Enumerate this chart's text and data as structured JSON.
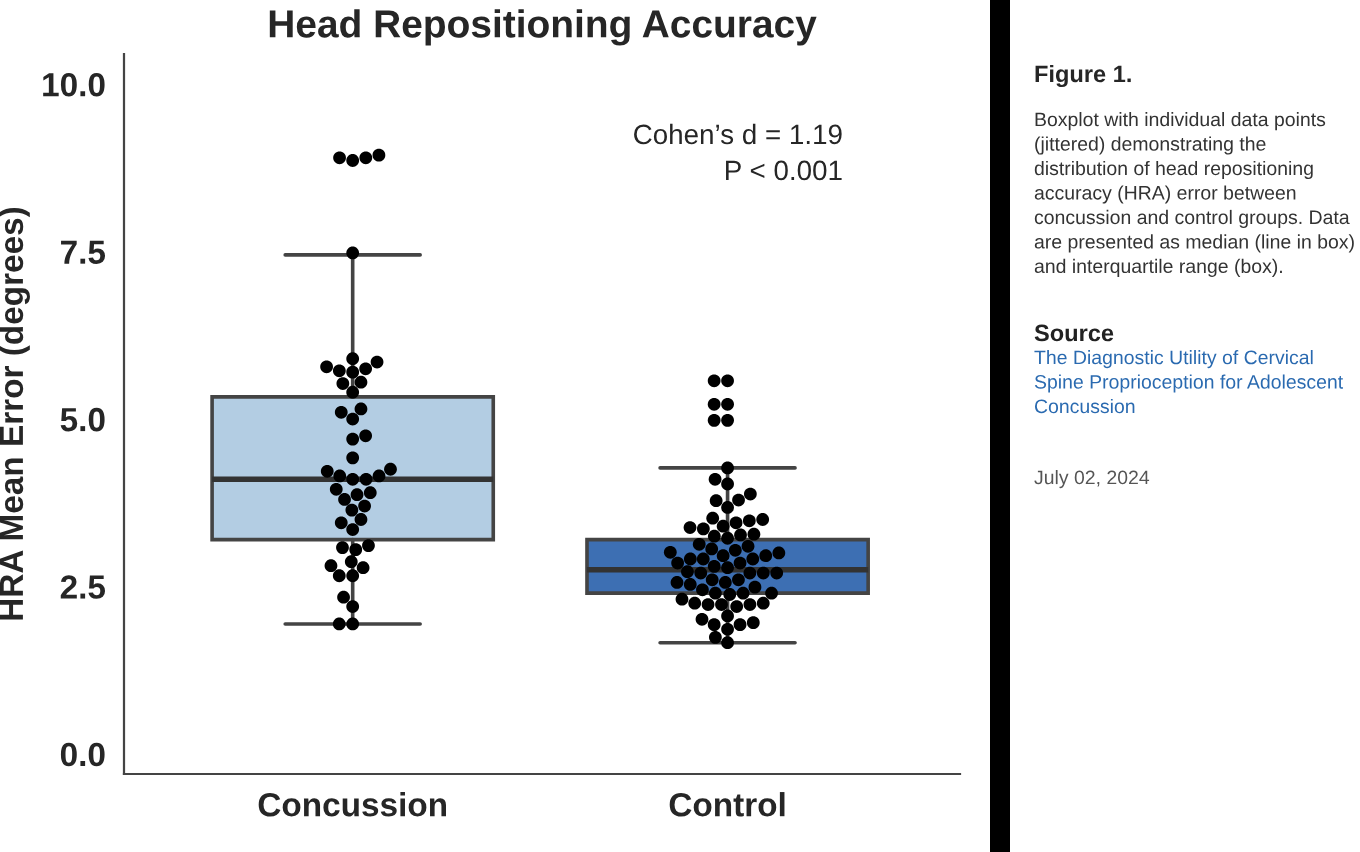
{
  "chart_data": [
    {
      "type": "box",
      "title": "Head Repositioning Accuracy",
      "ylabel": "HRA Mean Error (degrees)",
      "categories": [
        "Concussion",
        "Control"
      ],
      "boxes": [
        {
          "low": 1.94,
          "q1": 3.2,
          "median": 4.1,
          "q3": 5.33,
          "high": 7.45,
          "outliers": [
            8.9
          ]
        },
        {
          "low": 1.66,
          "q1": 2.4,
          "median": 2.75,
          "q3": 3.2,
          "high": 4.27,
          "outliers": [
            5.57,
            5.22,
            4.98
          ]
        }
      ],
      "colors": [
        "#b3cde3",
        "#3d6fb3"
      ],
      "series": [
        {
          "type": "scatter",
          "color": "#000000",
          "x": [
            "Concussion",
            "Concussion",
            "Concussion",
            "Concussion",
            "Concussion",
            "Concussion",
            "Concussion",
            "Concussion",
            "Concussion",
            "Concussion",
            "Concussion",
            "Concussion",
            "Concussion",
            "Concussion",
            "Concussion",
            "Concussion",
            "Concussion",
            "Concussion",
            "Concussion",
            "Concussion",
            "Concussion",
            "Concussion",
            "Concussion",
            "Concussion",
            "Concussion",
            "Concussion",
            "Concussion",
            "Concussion",
            "Concussion",
            "Concussion",
            "Concussion",
            "Concussion",
            "Concussion",
            "Concussion",
            "Concussion",
            "Concussion",
            "Concussion",
            "Concussion",
            "Concussion",
            "Concussion",
            "Concussion",
            "Concussion",
            "Concussion",
            "Concussion",
            "Concussion",
            "Concussion",
            "Control",
            "Control",
            "Control",
            "Control",
            "Control",
            "Control",
            "Control",
            "Control",
            "Control",
            "Control",
            "Control",
            "Control",
            "Control",
            "Control",
            "Control",
            "Control",
            "Control",
            "Control",
            "Control",
            "Control",
            "Control",
            "Control",
            "Control",
            "Control",
            "Control",
            "Control",
            "Control",
            "Control",
            "Control",
            "Control",
            "Control",
            "Control",
            "Control",
            "Control",
            "Control",
            "Control",
            "Control",
            "Control",
            "Control",
            "Control",
            "Control",
            "Control",
            "Control",
            "Control",
            "Control",
            "Control",
            "Control",
            "Control",
            "Control",
            "Control",
            "Control",
            "Control",
            "Control",
            "Control",
            "Control",
            "Control",
            "Control",
            "Control",
            "Control",
            "Control",
            "Control",
            "Control",
            "Control",
            "Control",
            "Control",
            "Control",
            "Control"
          ],
          "values": [
            8.94,
            8.9,
            8.86,
            7.48,
            5.9,
            5.85,
            5.78,
            5.75,
            5.72,
            5.7,
            5.55,
            5.53,
            5.4,
            5.15,
            5.1,
            5.0,
            4.75,
            4.7,
            4.42,
            4.25,
            4.22,
            4.15,
            4.15,
            4.1,
            4.1,
            3.95,
            3.9,
            3.87,
            3.8,
            3.7,
            3.64,
            3.5,
            3.45,
            3.35,
            3.05,
            3.08,
            3.11,
            2.87,
            2.81,
            2.78,
            2.66,
            2.66,
            2.34,
            2.2,
            1.94,
            1.94,
            5.57,
            5.22,
            4.98,
            4.27,
            4.03,
            4.1,
            3.79,
            3.78,
            3.88,
            3.68,
            3.48,
            3.5,
            3.45,
            3.52,
            3.38,
            3.36,
            3.4,
            3.28,
            3.22,
            3.27,
            3.25,
            2.96,
            2.96,
            3.06,
            3.13,
            3.04,
            3.01,
            2.91,
            2.78,
            2.8,
            2.7,
            2.91,
            2.7,
            2.72,
            2.7,
            2.7,
            2.56,
            2.56,
            2.53,
            2.49,
            2.4,
            2.6,
            2.4,
            2.6,
            2.45,
            2.38,
            2.4,
            2.25,
            2.23,
            2.25,
            2.31,
            2.2,
            2.23,
            2.23,
            2.01,
            2.06,
            1.96,
            1.86,
            1.93,
            1.93,
            1.74,
            1.66,
            3.1,
            3.0,
            2.85,
            2.91,
            2.85
          ]
        }
      ],
      "ylim": [
        -0.3,
        10.45
      ],
      "yticks": [
        {
          "value": 0,
          "label": "0.0"
        },
        {
          "value": 2.5,
          "label": "2.5"
        },
        {
          "value": 5,
          "label": "5.0"
        },
        {
          "value": 7.5,
          "label": "7.5"
        },
        {
          "value": 10,
          "label": "10.0"
        }
      ],
      "grid": false,
      "annotations": [
        "Cohen’s d = 1.19",
        "P < 0.001"
      ]
    },
    {
      "type": "other",
      "title": "Figure 1.",
      "annotations": [
        "Boxplot with individual data points (jittered) demonstrating the distribution of head repositioning accuracy (HRA) error between concussion and control groups. Data are presented as median (line in box) and interquartile range (box).",
        "Source",
        "The Diagnostic Utility of Cervical Spine Proprioception for Adolescent Concussion",
        "July 02, 2024"
      ]
    }
  ]
}
